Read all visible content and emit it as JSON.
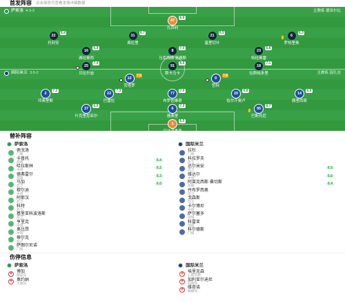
{
  "header": {
    "title": "首发阵容",
    "subtitle": "点击球员可查看本场详细数据"
  },
  "colors": {
    "home_jersey": "#17263a",
    "home_ring": "#2fae4e",
    "away_jersey": "#1e4f9c",
    "gk_jersey": "#f0883a",
    "home_logo": "#1f9d47",
    "away_logo": "#123a8a"
  },
  "home": {
    "name": "萨索洛",
    "formation": "4-3-3",
    "coach": "主教练 德泽尔比",
    "players": [
      {
        "number": "47",
        "name": "孔西利",
        "rating": "6.6",
        "events": []
      },
      {
        "number": "22",
        "name": "托利安",
        "rating": "6.4",
        "events": []
      },
      {
        "number": "31",
        "name": "费拉里",
        "rating": "6.7",
        "events": []
      },
      {
        "number": "21",
        "name": "基里切什",
        "rating": "6.5",
        "events": []
      },
      {
        "number": "6",
        "name": "罗热里奥",
        "rating": "6.3",
        "events": [
          "yellow-card-icon"
        ]
      },
      {
        "number": "16",
        "name": "弗拉泰西",
        "rating": "6.9",
        "events": []
      },
      {
        "number": "8",
        "name": "马克西姆·洛佩斯",
        "rating": "7.0",
        "events": []
      },
      {
        "number": "23",
        "name": "特拉奥雷",
        "rating": "6.8",
        "events": []
      },
      {
        "number": "25",
        "name": "贝拉尔迪",
        "rating": "7.4",
        "events": [
          "goal-icon"
        ]
      },
      {
        "number": "91",
        "name": "斯卡马卡",
        "rating": "6.6",
        "events": []
      },
      {
        "number": "18",
        "name": "拉斯帕多里",
        "rating": "7.1",
        "events": []
      }
    ]
  },
  "away": {
    "name": "国际米兰",
    "formation": "3-5-2",
    "coach": "主教练 因扎吉",
    "players": [
      {
        "number": "1",
        "name": "汉达诺维奇",
        "rating": "6.5",
        "events": []
      },
      {
        "number": "37",
        "name": "什克里尼亚尔",
        "rating": "6.9",
        "events": []
      },
      {
        "number": "6",
        "name": "德弗里",
        "rating": "7.0",
        "events": []
      },
      {
        "number": "95",
        "name": "巴斯托尼",
        "rating": "6.7",
        "events": [
          "yellow-card-icon"
        ]
      },
      {
        "number": "2",
        "name": "邓弗里斯",
        "rating": "7.2",
        "events": []
      },
      {
        "number": "23",
        "name": "巴雷拉",
        "rating": "7.3",
        "events": []
      },
      {
        "number": "77",
        "name": "布罗佐维奇",
        "rating": "7.0",
        "events": []
      },
      {
        "number": "20",
        "name": "恰尔汗奥卢",
        "rating": "6.8",
        "events": []
      },
      {
        "number": "14",
        "name": "佩里西奇",
        "rating": "6.9",
        "events": []
      },
      {
        "number": "10",
        "name": "劳塔罗",
        "rating": "7.5",
        "events": [
          "goal-icon"
        ]
      },
      {
        "number": "9",
        "name": "哲科",
        "rating": "7.8",
        "events": [
          "goal-icon"
        ]
      }
    ]
  },
  "subs": {
    "title": "替补阵容",
    "home": [
      {
        "name": "佩戈洛",
        "info": "门将"
      },
      {
        "name": "卡普托",
        "info": "前锋",
        "rating": "6.4"
      },
      {
        "name": "哈拉斯林",
        "info": "中场",
        "rating": "6.2"
      },
      {
        "name": "德弗雷尔",
        "info": "前锋",
        "rating": "6.3"
      },
      {
        "name": "马加",
        "info": "后卫",
        "rating": "6.0"
      },
      {
        "name": "穆尔迪",
        "info": "中场"
      },
      {
        "name": "阿耶汉",
        "info": "后卫"
      },
      {
        "name": "科特",
        "info": "后卫"
      },
      {
        "name": "基里亚科波洛斯",
        "info": "后卫"
      },
      {
        "name": "亨里克",
        "info": "中场"
      },
      {
        "name": "奥比昂",
        "info": "中场"
      },
      {
        "name": "蒂尔克",
        "info": "后卫"
      },
      {
        "name": "萨图尔尼诺",
        "info": "门将"
      }
    ],
    "away": [
      {
        "name": "拉杜",
        "info": "门将"
      },
      {
        "name": "科拉罗夫",
        "info": "后卫"
      },
      {
        "name": "达尔米安",
        "info": "后卫",
        "rating": "6.5"
      },
      {
        "name": "维达尔",
        "info": "中场",
        "rating": "6.6"
      },
      {
        "name": "阿莱克西斯·桑切斯",
        "info": "前锋",
        "rating": "6.4"
      },
      {
        "name": "丹布罗西奥",
        "info": "后卫"
      },
      {
        "name": "戈森斯",
        "info": "后卫"
      },
      {
        "name": "卡尔博尼",
        "info": "中场"
      },
      {
        "name": "萨尔塞多",
        "info": "前锋"
      },
      {
        "name": "科雷亚",
        "info": "前锋"
      },
      {
        "name": "科尔德斯",
        "info": "门将"
      }
    ]
  },
  "injuries": {
    "title": "伤停信息",
    "home": [
      {
        "name": "博加",
        "reason": "膝盖伤"
      },
      {
        "name": "奥约纳",
        "reason": "大腿伤"
      }
    ],
    "away": [
      {
        "name": "埃里克森",
        "reason": "心脏问题"
      },
      {
        "name": "加利亚尔迪尼",
        "reason": "背部伤"
      },
      {
        "name": "维奇诺",
        "reason": "跟腱伤"
      }
    ]
  }
}
